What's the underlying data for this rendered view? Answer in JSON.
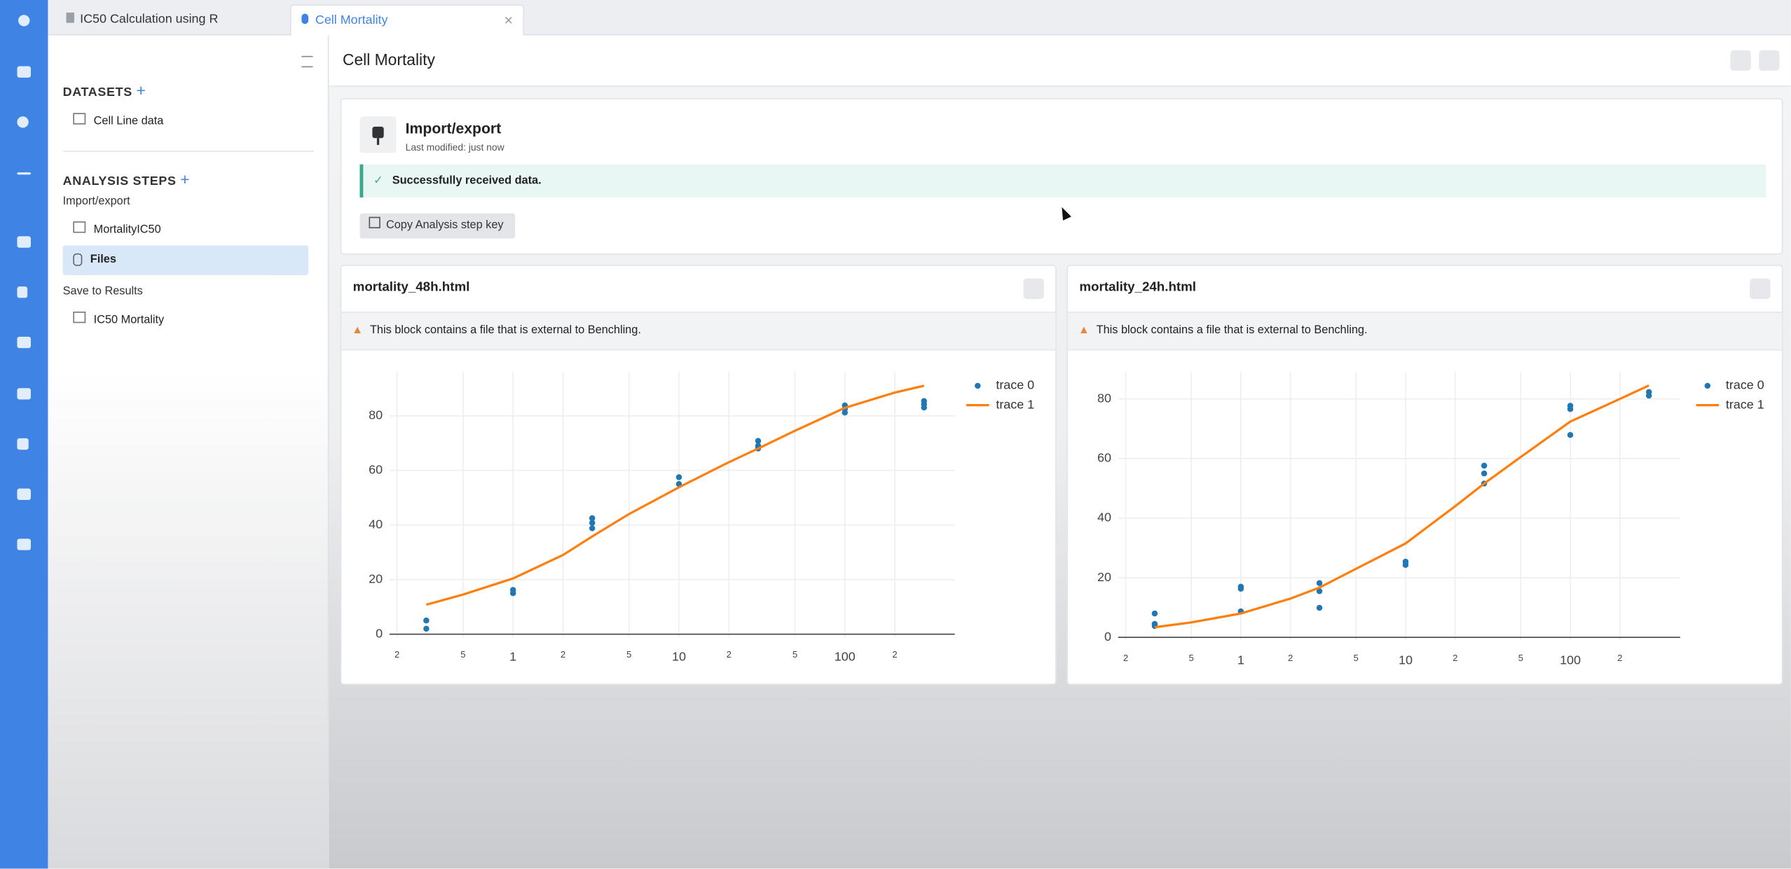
{
  "tabs": [
    "IC50 Calculation using R",
    "Cell Mortality"
  ],
  "sidebar": {
    "datasets_heading": "DATASETS",
    "datasets": [
      "Cell Line data"
    ],
    "analysis_heading": "ANALYSIS STEPS",
    "groups": [
      {
        "label": "Import/export",
        "items": [
          "MortalityIC50",
          "Files"
        ]
      },
      {
        "label": "Save to Results",
        "items": [
          "IC50 Mortality"
        ]
      }
    ]
  },
  "header": {
    "title": "Cell Mortality"
  },
  "step": {
    "title": "Import/export",
    "modified": "Last modified: just now",
    "message": "Successfully received data.",
    "button": "Copy Analysis step key"
  },
  "files": [
    {
      "name": "mortality_48h.html",
      "warning": "This block contains a file that is external to Benchling."
    },
    {
      "name": "mortality_24h.html",
      "warning": "This block contains a file that is external to Benchling."
    }
  ],
  "chart_data": [
    {
      "type": "scatter",
      "log_x": true,
      "grid": true,
      "legend": "top-right",
      "xlim": [
        0.18,
        460
      ],
      "ylim": [
        -1,
        96
      ],
      "xticks": [
        {
          "value": 0.2,
          "label": "2"
        },
        {
          "value": 0.5,
          "label": "5"
        },
        1,
        {
          "value": 2,
          "label": "2"
        },
        {
          "value": 5,
          "label": "5"
        },
        10,
        {
          "value": 20,
          "label": "2"
        },
        {
          "value": 50,
          "label": "5"
        },
        100,
        {
          "value": 200,
          "label": "2"
        }
      ],
      "yticks": [
        0,
        20,
        40,
        60,
        80
      ],
      "series": [
        {
          "name": "trace 0",
          "mode": "markers",
          "color": "#1f77b4",
          "x": [
            0.3,
            0.3,
            1,
            1,
            3,
            3,
            3,
            10,
            10,
            30,
            30,
            30,
            100,
            100,
            100,
            300,
            300,
            300
          ],
          "values": [
            5,
            2,
            16.2,
            15,
            42.5,
            40.8,
            38.8,
            57.5,
            55,
            70.8,
            69,
            68,
            83.8,
            82.5,
            81.2,
            85.4,
            84.2,
            83
          ]
        },
        {
          "name": "trace 1",
          "mode": "lines",
          "color": "#ff7f0e",
          "x": [
            0.3,
            0.5,
            1,
            2,
            3,
            5,
            10,
            20,
            30,
            50,
            100,
            200,
            300
          ],
          "values": [
            10.8,
            14.5,
            20.4,
            29,
            35.8,
            44,
            53.8,
            63,
            68,
            74.5,
            82.9,
            88.5,
            91
          ]
        }
      ]
    },
    {
      "type": "scatter",
      "log_x": true,
      "grid": true,
      "legend": "top-right",
      "xlim": [
        0.18,
        464
      ],
      "ylim": [
        -1,
        89
      ],
      "xticks": [
        {
          "value": 0.2,
          "label": "2"
        },
        {
          "value": 0.5,
          "label": "5"
        },
        1,
        {
          "value": 2,
          "label": "2"
        },
        {
          "value": 5,
          "label": "5"
        },
        10,
        {
          "value": 20,
          "label": "2"
        },
        {
          "value": 50,
          "label": "5"
        },
        100,
        {
          "value": 200,
          "label": "2"
        }
      ],
      "yticks": [
        0,
        20,
        40,
        60,
        80
      ],
      "series": [
        {
          "name": "trace 0",
          "mode": "markers",
          "color": "#1f77b4",
          "x": [
            0.3,
            0.3,
            0.3,
            1,
            1,
            1,
            3,
            3,
            3,
            10,
            10,
            30,
            30,
            30,
            100,
            100,
            100,
            300,
            300
          ],
          "values": [
            8,
            4.5,
            3.8,
            17,
            16.3,
            8.7,
            18.2,
            15.5,
            9.9,
            25.4,
            24.3,
            57.6,
            55,
            51.6,
            77.7,
            76.6,
            67.9,
            82.3,
            81.1
          ]
        },
        {
          "name": "trace 1",
          "mode": "lines",
          "color": "#ff7f0e",
          "x": [
            0.3,
            0.5,
            1,
            2,
            3,
            5,
            10,
            20,
            30,
            50,
            100,
            200,
            300
          ],
          "values": [
            3.4,
            5,
            8,
            13,
            16.7,
            23,
            31.5,
            44,
            51.6,
            60.5,
            72.4,
            80,
            84.5
          ]
        }
      ]
    }
  ]
}
